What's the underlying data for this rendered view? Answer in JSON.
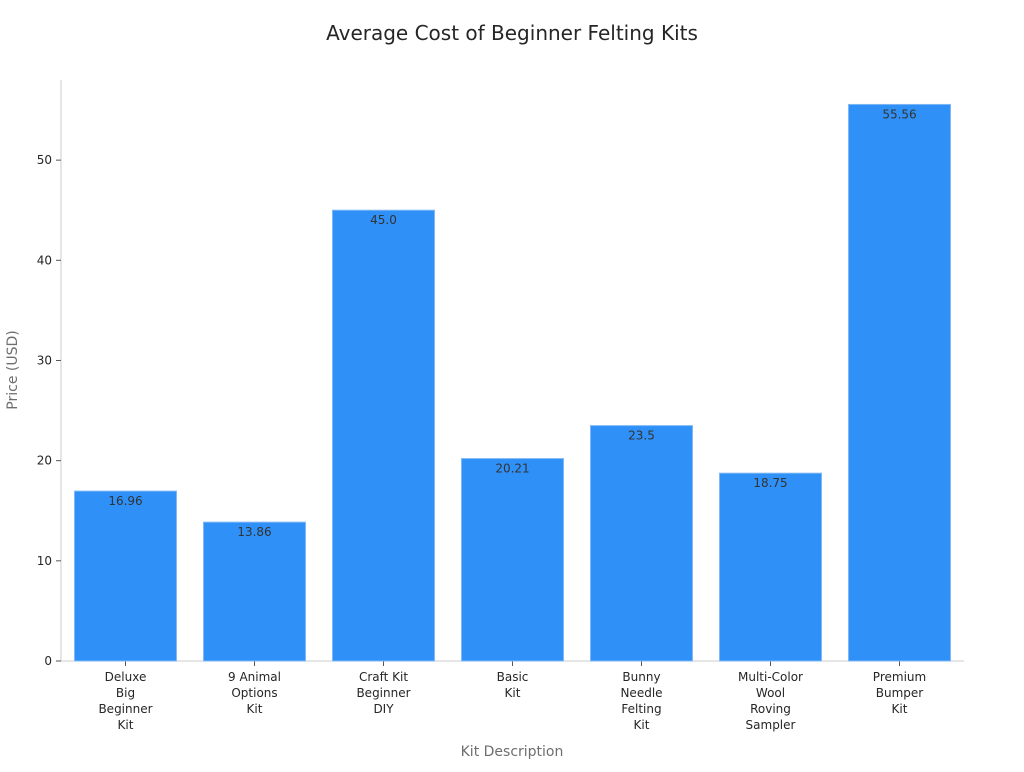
{
  "chart_data": {
    "type": "bar",
    "title": "Average Cost of Beginner Felting Kits",
    "xlabel": "Kit Description",
    "ylabel": "Price (USD)",
    "ylim": [
      0,
      58
    ],
    "yticks": [
      0,
      10,
      20,
      30,
      40,
      50
    ],
    "grid": false,
    "bar_color": "#2f91f7",
    "categories": [
      [
        "Deluxe",
        "Big",
        "Beginner",
        "Kit"
      ],
      [
        "9 Animal",
        "Options",
        "Kit"
      ],
      [
        "Craft Kit",
        "Beginner",
        "DIY"
      ],
      [
        "Basic",
        "Kit"
      ],
      [
        "Bunny",
        "Needle",
        "Felting",
        "Kit"
      ],
      [
        "Multi-Color",
        "Wool",
        "Roving",
        "Sampler"
      ],
      [
        "Premium",
        "Bumper",
        "Kit"
      ]
    ],
    "values": [
      16.96,
      13.86,
      45.0,
      20.21,
      23.5,
      18.75,
      55.56
    ],
    "value_labels": [
      "16.96",
      "13.86",
      "45.0",
      "20.21",
      "23.5",
      "18.75",
      "55.56"
    ]
  }
}
